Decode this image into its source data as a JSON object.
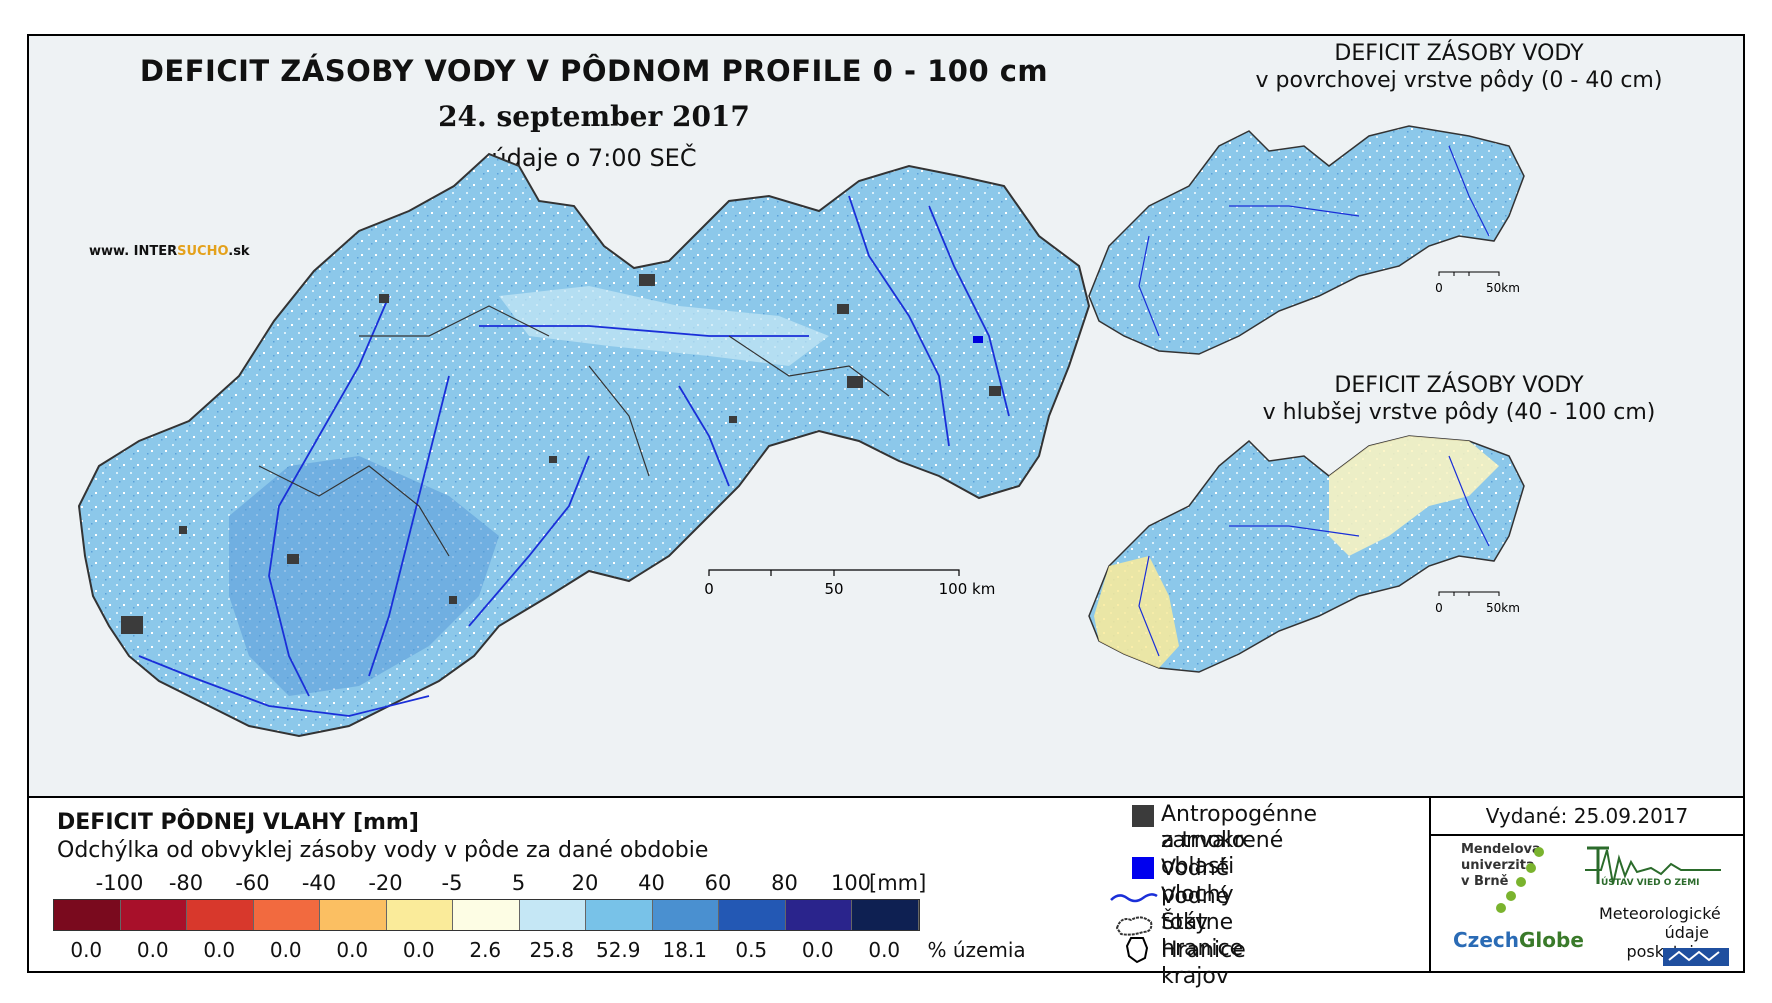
{
  "title": {
    "main": "DEFICIT ZÁSOBY VODY V PÔDNOM PROFILE 0 - 100 cm",
    "date": "24. september 2017",
    "time": "údaje o 7:00 SEČ"
  },
  "brand": {
    "prefix": "www. INTER",
    "accent": "SUCHO",
    "suffix": ".sk"
  },
  "inset_top": {
    "line1": "DEFICIT ZÁSOBY VODY",
    "line2": "v povrchovej vrstve pôdy (0 - 40 cm)",
    "scale": [
      "0",
      "50km"
    ]
  },
  "inset_bottom": {
    "line1": "DEFICIT ZÁSOBY VODY",
    "line2": "v hlubšej vrstve pôdy (40 - 100 cm)",
    "scale": [
      "0",
      "50km"
    ]
  },
  "main_scale": [
    "0",
    "50",
    "100 km"
  ],
  "legend": {
    "title": "DEFICIT PÔDNEJ VLAHY [mm]",
    "subtitle": "Odchýlka od obvyklej zásoby vody v pôde za dané obdobie",
    "ticks": [
      "-100",
      "-80",
      "-60",
      "-40",
      "-20",
      "-5",
      "5",
      "20",
      "40",
      "60",
      "80",
      "100"
    ],
    "tick_unit": "[mm]",
    "classes": [
      {
        "color": "#7a0a1e",
        "percent": "0.0"
      },
      {
        "color": "#a8102a",
        "percent": "0.0"
      },
      {
        "color": "#d8382c",
        "percent": "0.0"
      },
      {
        "color": "#f26a3f",
        "percent": "0.0"
      },
      {
        "color": "#fbbf62",
        "percent": "0.0"
      },
      {
        "color": "#faeb9a",
        "percent": "0.0"
      },
      {
        "color": "#fdfde4",
        "percent": "2.6"
      },
      {
        "color": "#c5e7f5",
        "percent": "25.8"
      },
      {
        "color": "#78c2e8",
        "percent": "52.9"
      },
      {
        "color": "#4a90d0",
        "percent": "18.1"
      },
      {
        "color": "#2358b4",
        "percent": "0.5"
      },
      {
        "color": "#2a248c",
        "percent": "0.0"
      },
      {
        "color": "#0e2052",
        "percent": "0.0"
      }
    ],
    "percent_unit": "% územia"
  },
  "symbols": [
    {
      "icon": "urban-square-icon",
      "lines": [
        "Antropogénne a trvalo",
        "zamokrené oblasti"
      ]
    },
    {
      "icon": "water-square-icon",
      "lines": [
        "Vodné plochy"
      ]
    },
    {
      "icon": "river-line-icon",
      "lines": [
        "Vodné toky"
      ]
    },
    {
      "icon": "state-border-icon",
      "lines": [
        "Štátne hranice"
      ]
    },
    {
      "icon": "region-border-icon",
      "lines": [
        "Hranice krajov"
      ]
    }
  ],
  "issued": "Vydané: 25.09.2017",
  "logos": {
    "mendel": [
      "Mendelova",
      "univerzita",
      "v Brně"
    ],
    "czech_a": "Czech",
    "czech_b": "Globe",
    "ustav": "ÚSTAV VIED O ZEMI",
    "meteo": [
      "Meteorologické",
      "údaje",
      "poskytuje:"
    ]
  }
}
